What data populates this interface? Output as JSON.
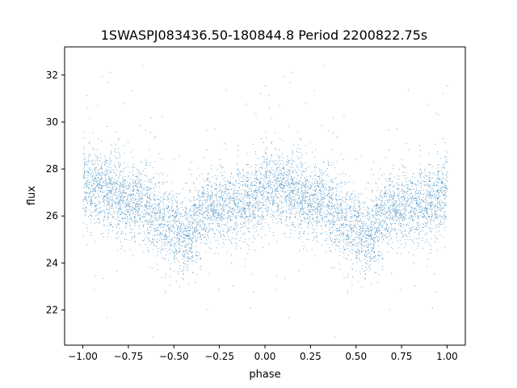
{
  "chart_data": {
    "type": "scatter",
    "title": "1SWASPJ083436.50-180844.8 Period 2200822.75s",
    "xlabel": "phase",
    "ylabel": "flux",
    "xlim": [
      -1.1,
      1.1
    ],
    "ylim": [
      20.5,
      33.2
    ],
    "xticks": [
      -1.0,
      -0.75,
      -0.5,
      -0.25,
      0.0,
      0.25,
      0.5,
      0.75,
      1.0
    ],
    "xtick_labels": [
      "−1.00",
      "−0.75",
      "−0.50",
      "−0.25",
      "0.00",
      "0.25",
      "0.50",
      "0.75",
      "1.00"
    ],
    "yticks": [
      22,
      24,
      26,
      28,
      30,
      32
    ],
    "ytick_labels": [
      "22",
      "24",
      "26",
      "28",
      "30",
      "32"
    ],
    "grid": false,
    "point_color": "#1f77b4",
    "phase_profile": [
      [
        0.0,
        27.3
      ],
      [
        0.05,
        27.3
      ],
      [
        0.1,
        27.2
      ],
      [
        0.15,
        27.1
      ],
      [
        0.2,
        26.8
      ],
      [
        0.25,
        26.6
      ],
      [
        0.3,
        26.7
      ],
      [
        0.35,
        26.5
      ],
      [
        0.4,
        26.0
      ],
      [
        0.45,
        25.6
      ],
      [
        0.5,
        25.5
      ],
      [
        0.55,
        25.2
      ],
      [
        0.6,
        25.4
      ],
      [
        0.65,
        25.9
      ],
      [
        0.7,
        26.2
      ],
      [
        0.75,
        26.4
      ],
      [
        0.8,
        26.5
      ],
      [
        0.85,
        26.6
      ],
      [
        0.9,
        26.5
      ],
      [
        0.95,
        26.8
      ],
      [
        1.0,
        27.3
      ]
    ],
    "scatter_sigma": 0.8,
    "point_count_per_cycle": 3500
  }
}
